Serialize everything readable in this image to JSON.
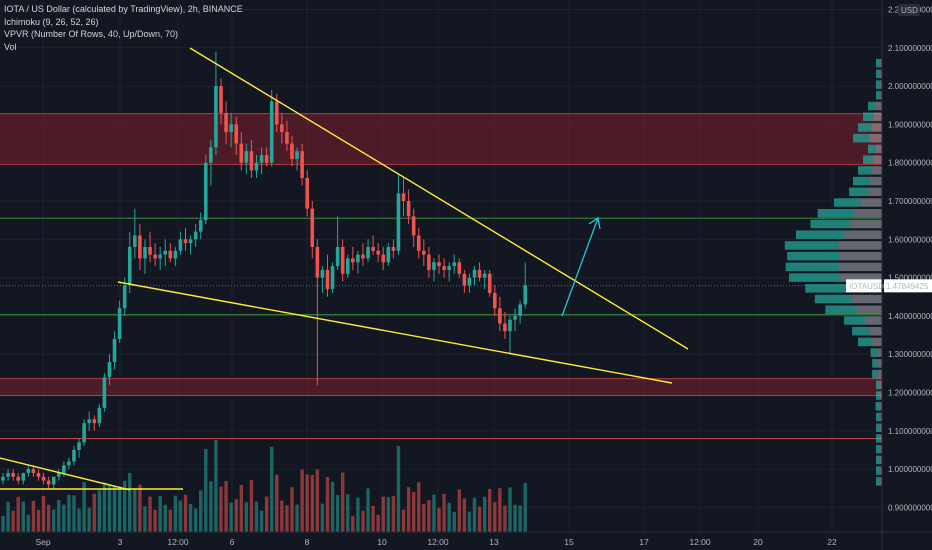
{
  "legend": {
    "title": "IOTA / US Dollar (calculated by TradingView), 2h, BINANCE",
    "ichimoku": "Ichimoku (9, 26, 52, 26)",
    "vpvr": "VPVR (Number Of Rows, 40, Up/Down, 70)",
    "vol": "Vol"
  },
  "price_axis": {
    "currency": "USD",
    "ticks": [
      "2.200000000",
      "2.100000000",
      "2.000000000",
      "1.900000000",
      "1.800000000",
      "1.700000000",
      "1.600000000",
      "1.500000000",
      "1.400000000",
      "1.300000000",
      "1.200000000",
      "1.100000000",
      "1.000000000",
      "0.900000000"
    ],
    "tick_values": [
      2.2,
      2.1,
      2.0,
      1.9,
      1.8,
      1.7,
      1.6,
      1.5,
      1.4,
      1.3,
      1.2,
      1.1,
      1.0,
      0.9
    ],
    "last_label": "IOTAUSD",
    "last_price": "1.47849425",
    "last_value": 1.4785
  },
  "time_axis": {
    "ticks": [
      "Sep",
      "3",
      "12:00",
      "6",
      "8",
      "10",
      "12:00",
      "13",
      "15",
      "17",
      "12:00",
      "20",
      "22"
    ]
  },
  "colors": {
    "background": "#131722",
    "up": "#26a69a",
    "down": "#ef5350",
    "trendline": "#ffeb3b",
    "zone_fill": "#7b1f2b",
    "zone_border": "#ff5252",
    "support_line": "#4caf50",
    "arrow": "#26c6da"
  },
  "chart_data": {
    "type": "candlestick",
    "symbol": "IOTAUSD",
    "interval": "2h",
    "exchange": "BINANCE",
    "ylim": [
      0.86,
      2.2
    ],
    "resistance_zones": [
      [
        1.795,
        1.928
      ],
      [
        1.192,
        1.236
      ]
    ],
    "horizontal_lines": [
      1.655,
      1.403,
      1.08
    ],
    "ohlc": [
      [
        0.97,
        0.99,
        0.96,
        0.98
      ],
      [
        0.98,
        1.0,
        0.97,
        0.99
      ],
      [
        0.99,
        1.0,
        0.97,
        0.98
      ],
      [
        0.98,
        0.99,
        0.96,
        0.97
      ],
      [
        0.97,
        0.99,
        0.96,
        0.99
      ],
      [
        0.99,
        1.01,
        0.98,
        1.0
      ],
      [
        1.0,
        1.01,
        0.98,
        0.99
      ],
      [
        0.99,
        1.0,
        0.97,
        0.98
      ],
      [
        0.98,
        0.99,
        0.96,
        0.97
      ],
      [
        0.97,
        0.98,
        0.95,
        0.96
      ],
      [
        0.96,
        0.98,
        0.95,
        0.98
      ],
      [
        0.98,
        1.0,
        0.97,
        0.99
      ],
      [
        0.99,
        1.02,
        0.98,
        1.01
      ],
      [
        1.01,
        1.03,
        1.0,
        1.02
      ],
      [
        1.02,
        1.06,
        1.01,
        1.05
      ],
      [
        1.05,
        1.08,
        1.03,
        1.07
      ],
      [
        1.07,
        1.13,
        1.06,
        1.12
      ],
      [
        1.12,
        1.15,
        1.1,
        1.13
      ],
      [
        1.13,
        1.14,
        1.1,
        1.12
      ],
      [
        1.12,
        1.17,
        1.11,
        1.16
      ],
      [
        1.16,
        1.25,
        1.15,
        1.24
      ],
      [
        1.24,
        1.3,
        1.22,
        1.28
      ],
      [
        1.28,
        1.36,
        1.26,
        1.34
      ],
      [
        1.34,
        1.44,
        1.33,
        1.42
      ],
      [
        1.42,
        1.5,
        1.4,
        1.48
      ],
      [
        1.48,
        1.62,
        1.46,
        1.58
      ],
      [
        1.58,
        1.68,
        1.55,
        1.61
      ],
      [
        1.61,
        1.64,
        1.52,
        1.55
      ],
      [
        1.55,
        1.6,
        1.51,
        1.58
      ],
      [
        1.58,
        1.62,
        1.54,
        1.56
      ],
      [
        1.56,
        1.59,
        1.53,
        1.55
      ],
      [
        1.55,
        1.58,
        1.52,
        1.56
      ],
      [
        1.56,
        1.6,
        1.53,
        1.57
      ],
      [
        1.57,
        1.59,
        1.54,
        1.55
      ],
      [
        1.55,
        1.58,
        1.53,
        1.57
      ],
      [
        1.57,
        1.62,
        1.56,
        1.6
      ],
      [
        1.6,
        1.63,
        1.57,
        1.59
      ],
      [
        1.59,
        1.61,
        1.56,
        1.6
      ],
      [
        1.6,
        1.64,
        1.58,
        1.62
      ],
      [
        1.62,
        1.67,
        1.6,
        1.65
      ],
      [
        1.65,
        1.82,
        1.64,
        1.8
      ],
      [
        1.8,
        1.86,
        1.74,
        1.84
      ],
      [
        1.84,
        2.09,
        1.82,
        2.0
      ],
      [
        2.0,
        2.02,
        1.9,
        1.93
      ],
      [
        1.93,
        1.96,
        1.85,
        1.88
      ],
      [
        1.88,
        1.93,
        1.84,
        1.9
      ],
      [
        1.9,
        1.92,
        1.82,
        1.85
      ],
      [
        1.85,
        1.88,
        1.78,
        1.8
      ],
      [
        1.8,
        1.85,
        1.77,
        1.83
      ],
      [
        1.83,
        1.86,
        1.76,
        1.78
      ],
      [
        1.78,
        1.82,
        1.76,
        1.8
      ],
      [
        1.8,
        1.84,
        1.77,
        1.82
      ],
      [
        1.82,
        1.84,
        1.79,
        1.8
      ],
      [
        1.8,
        1.99,
        1.79,
        1.96
      ],
      [
        1.96,
        1.98,
        1.88,
        1.9
      ],
      [
        1.9,
        1.93,
        1.85,
        1.88
      ],
      [
        1.88,
        1.91,
        1.83,
        1.85
      ],
      [
        1.85,
        1.87,
        1.79,
        1.81
      ],
      [
        1.81,
        1.84,
        1.78,
        1.83
      ],
      [
        1.83,
        1.85,
        1.74,
        1.76
      ],
      [
        1.76,
        1.78,
        1.66,
        1.68
      ],
      [
        1.68,
        1.7,
        1.55,
        1.58
      ],
      [
        1.58,
        1.6,
        1.22,
        1.5
      ],
      [
        1.5,
        1.53,
        1.46,
        1.52
      ],
      [
        1.52,
        1.56,
        1.45,
        1.47
      ],
      [
        1.47,
        1.54,
        1.46,
        1.53
      ],
      [
        1.53,
        1.66,
        1.52,
        1.58
      ],
      [
        1.58,
        1.6,
        1.49,
        1.51
      ],
      [
        1.51,
        1.56,
        1.5,
        1.55
      ],
      [
        1.55,
        1.58,
        1.52,
        1.54
      ],
      [
        1.54,
        1.57,
        1.51,
        1.56
      ],
      [
        1.56,
        1.59,
        1.53,
        1.55
      ],
      [
        1.55,
        1.6,
        1.54,
        1.58
      ],
      [
        1.58,
        1.61,
        1.56,
        1.57
      ],
      [
        1.57,
        1.59,
        1.54,
        1.56
      ],
      [
        1.56,
        1.58,
        1.52,
        1.54
      ],
      [
        1.54,
        1.59,
        1.53,
        1.58
      ],
      [
        1.58,
        1.6,
        1.55,
        1.57
      ],
      [
        1.57,
        1.77,
        1.56,
        1.72
      ],
      [
        1.72,
        1.76,
        1.66,
        1.7
      ],
      [
        1.7,
        1.73,
        1.64,
        1.66
      ],
      [
        1.66,
        1.68,
        1.58,
        1.61
      ],
      [
        1.61,
        1.63,
        1.55,
        1.57
      ],
      [
        1.57,
        1.6,
        1.53,
        1.56
      ],
      [
        1.56,
        1.58,
        1.5,
        1.52
      ],
      [
        1.52,
        1.55,
        1.49,
        1.54
      ],
      [
        1.54,
        1.56,
        1.51,
        1.53
      ],
      [
        1.53,
        1.55,
        1.5,
        1.52
      ],
      [
        1.52,
        1.54,
        1.49,
        1.53
      ],
      [
        1.53,
        1.56,
        1.51,
        1.54
      ],
      [
        1.54,
        1.55,
        1.5,
        1.51
      ],
      [
        1.51,
        1.52,
        1.46,
        1.48
      ],
      [
        1.48,
        1.51,
        1.46,
        1.5
      ],
      [
        1.5,
        1.53,
        1.48,
        1.52
      ],
      [
        1.52,
        1.54,
        1.49,
        1.5
      ],
      [
        1.5,
        1.52,
        1.47,
        1.51
      ],
      [
        1.51,
        1.52,
        1.45,
        1.46
      ],
      [
        1.46,
        1.48,
        1.4,
        1.42
      ],
      [
        1.42,
        1.45,
        1.36,
        1.38
      ],
      [
        1.38,
        1.41,
        1.34,
        1.36
      ],
      [
        1.36,
        1.4,
        1.3,
        1.39
      ],
      [
        1.39,
        1.42,
        1.36,
        1.4
      ],
      [
        1.4,
        1.44,
        1.38,
        1.43
      ],
      [
        1.43,
        1.54,
        1.42,
        1.48
      ]
    ]
  }
}
